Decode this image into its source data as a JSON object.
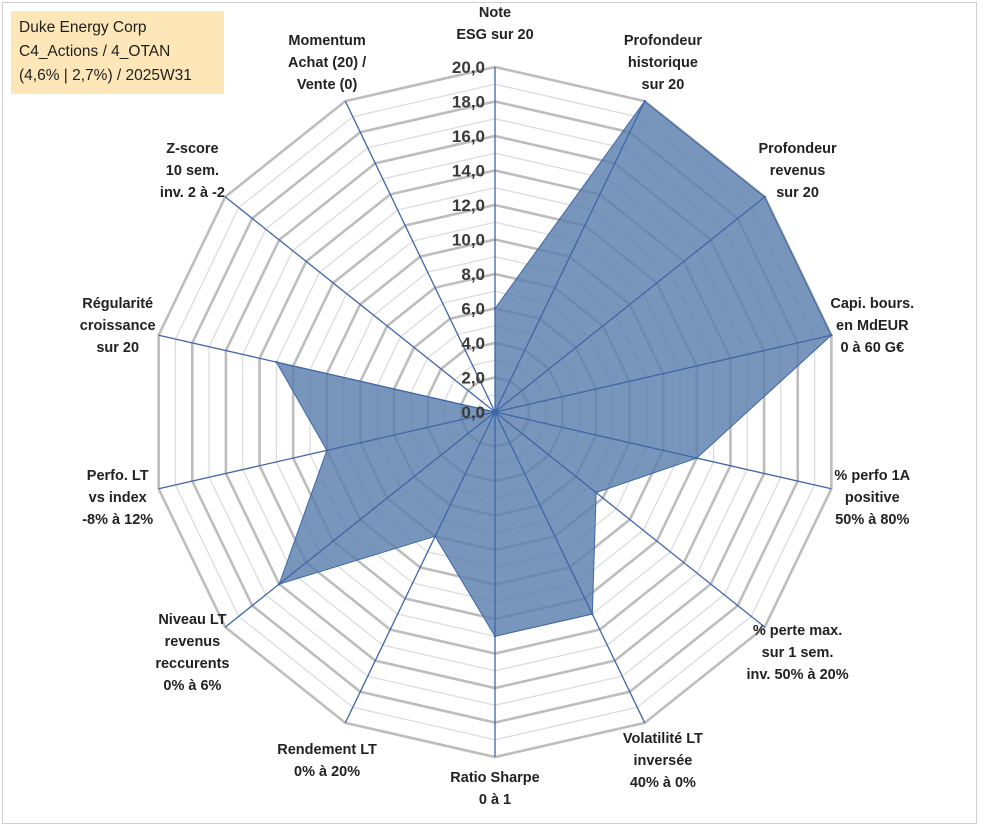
{
  "title_box": {
    "line1": "Duke Energy Corp",
    "line2": "C4_Actions / 4_OTAN",
    "line3": "(4,6% | 2,7%) / 2025W31"
  },
  "colors": {
    "fill": "#5a7fac",
    "stroke": "#3f66a8",
    "grid": "#bdbdbd",
    "title_bg": "#fde7b8"
  },
  "chart_data": {
    "type": "radar",
    "title": "",
    "rlim": [
      0,
      20
    ],
    "ticks": [
      "0,0",
      "2,0",
      "4,0",
      "6,0",
      "8,0",
      "10,0",
      "12,0",
      "14,0",
      "16,0",
      "18,0",
      "20,0"
    ],
    "grid": true,
    "axes": [
      {
        "label_lines": [
          "Note",
          "ESG sur 20"
        ],
        "value": 6.0
      },
      {
        "label_lines": [
          "Profondeur",
          "historique",
          "sur 20"
        ],
        "value": 20.0
      },
      {
        "label_lines": [
          "Profondeur",
          "revenus",
          "sur 20"
        ],
        "value": 20.0
      },
      {
        "label_lines": [
          "Capi. bours.",
          "en MdEUR",
          "0 à 60 G€"
        ],
        "value": 20.0
      },
      {
        "label_lines": [
          "% perfo 1A",
          "positive",
          "50% à 80%"
        ],
        "value": 12.0
      },
      {
        "label_lines": [
          "% perte max.",
          "sur 1 sem.",
          "inv. 50% à 20%"
        ],
        "value": 7.5
      },
      {
        "label_lines": [
          "Volatilité LT",
          "inversée",
          "40% à 0%"
        ],
        "value": 13.0
      },
      {
        "label_lines": [
          "Ratio Sharpe",
          "0 à 1"
        ],
        "value": 13.0
      },
      {
        "label_lines": [
          "Rendement LT",
          "0% à 20%"
        ],
        "value": 8.0
      },
      {
        "label_lines": [
          "Niveau LT",
          "revenus",
          "reccurents",
          "0% à 6%"
        ],
        "value": 16.0
      },
      {
        "label_lines": [
          "Perfo. LT",
          "vs index",
          "-8% à 12%"
        ],
        "value": 10.0
      },
      {
        "label_lines": [
          "Régularité",
          "croissance",
          "sur 20"
        ],
        "value": 13.0
      },
      {
        "label_lines": [
          "Z-score",
          "10 sem.",
          "inv. 2 à -2"
        ],
        "value": 0.0
      },
      {
        "label_lines": [
          "Momentum",
          "Achat (20) /",
          "Vente (0)"
        ],
        "value": 0.0
      }
    ]
  }
}
